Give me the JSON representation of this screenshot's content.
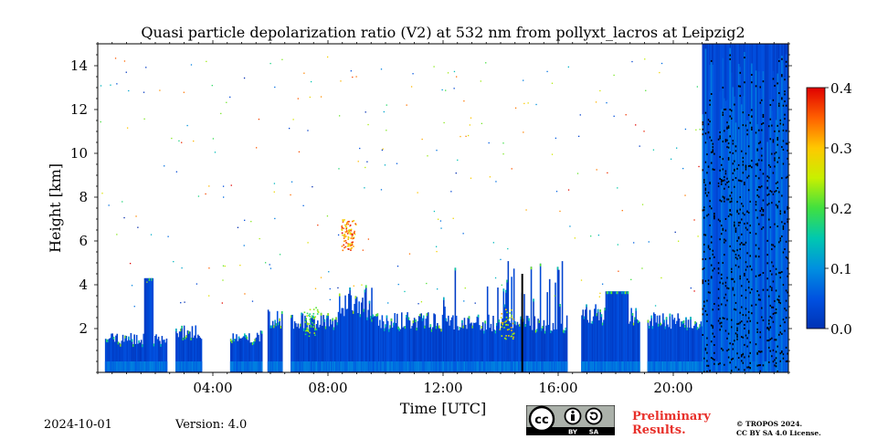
{
  "chart_data": {
    "type": "heatmap",
    "title": "Quasi particle depolarization ratio (V2) at 532 nm from pollyxt_lacros at Leipzig2",
    "xlabel": "Time [UTC]",
    "ylabel": "Height [km]",
    "xlim": [
      0,
      24
    ],
    "ylim": [
      0,
      15
    ],
    "x_ticks": [
      4,
      8,
      12,
      16,
      20
    ],
    "x_tick_labels": [
      "04:00",
      "08:00",
      "12:00",
      "16:00",
      "20:00"
    ],
    "y_ticks": [
      2,
      4,
      6,
      8,
      10,
      12,
      14
    ],
    "y_tick_labels": [
      "2",
      "4",
      "6",
      "8",
      "10",
      "12",
      "14"
    ],
    "colorbar": {
      "range": [
        0.0,
        0.4
      ],
      "ticks": [
        0.0,
        0.1,
        0.2,
        0.3,
        0.4
      ],
      "tick_labels": [
        "0.0",
        "0.1",
        "0.2",
        "0.3",
        "0.4"
      ],
      "colormap": "jet"
    },
    "valid_data_columns": [
      {
        "t0": 0.25,
        "t1": 2.4,
        "top_km": 1.5,
        "note": "boundary layer, spike to 4.3 km near 01:45"
      },
      {
        "t0": 2.7,
        "t1": 3.6,
        "top_km": 1.8
      },
      {
        "t0": 4.6,
        "t1": 5.7,
        "top_km": 1.6
      },
      {
        "t0": 5.9,
        "t1": 6.4,
        "top_km": 2.5
      },
      {
        "t0": 6.7,
        "t1": 9.5,
        "top_km": 2.3,
        "note": "aerosol up to 4 km"
      },
      {
        "t0": 9.5,
        "t1": 11.8,
        "top_km": 2.3
      },
      {
        "t0": 11.8,
        "t1": 16.3,
        "top_km": 2.2,
        "note": "cirrus/precipitation streaks to 5 km"
      },
      {
        "t0": 16.8,
        "t1": 18.8,
        "top_km": 2.6,
        "note": "layer up to 3.8 km near 18:00"
      },
      {
        "t0": 19.1,
        "t1": 21.2,
        "top_km": 2.3
      },
      {
        "t0": 21.0,
        "t1": 24.0,
        "top_km": 15.0,
        "note": "full-column signal / clouds"
      }
    ],
    "features": [
      {
        "label": "elevated high-depol layer",
        "time": 8.7,
        "height_km": 6.3,
        "value": 0.35
      },
      {
        "label": "dust-like feature",
        "time": 14.2,
        "height_km": 2.2,
        "value": 0.28
      },
      {
        "label": "aerosol top",
        "time": 7.4,
        "height_km": 2.3,
        "value": 0.22
      }
    ]
  },
  "footer": {
    "date": "2024-10-01",
    "version": "Version: 4.0",
    "preliminary_line1": "Preliminary",
    "preliminary_line2": "Results.",
    "copyright_line1": "© TROPOS 2024.",
    "copyright_line2": "CC BY SA 4.0 License."
  },
  "license_badge": {
    "cc": "cc",
    "by": "BY",
    "sa": "SA"
  },
  "colors": {
    "background": "#ffffff",
    "preliminary": "#e8302a",
    "badge_bg": "#abb1aa",
    "badge_bar": "#000000"
  }
}
